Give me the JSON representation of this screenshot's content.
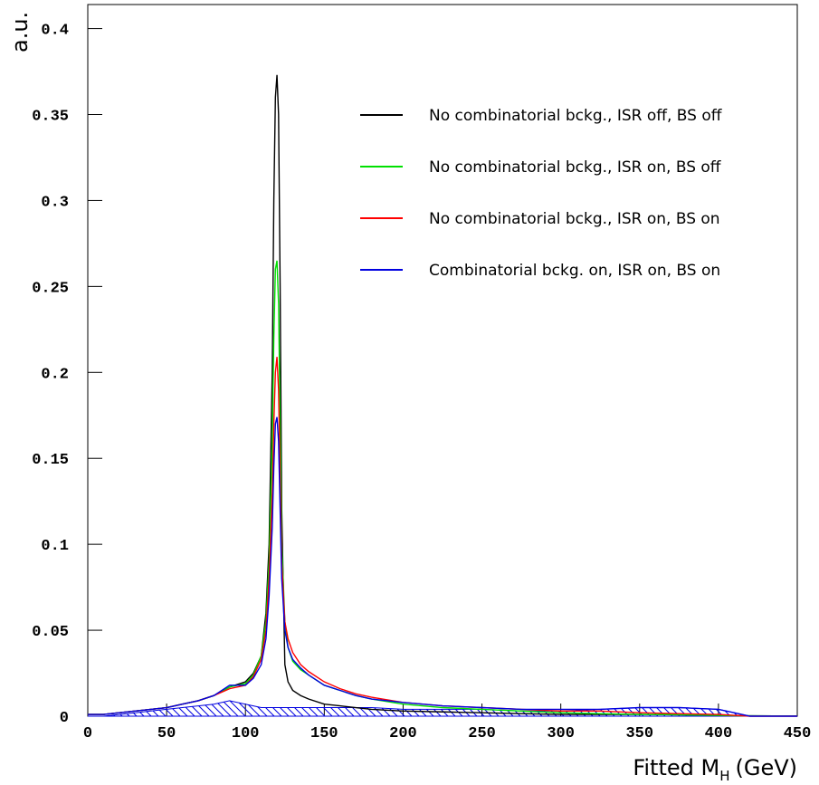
{
  "chart_data": {
    "type": "line",
    "y_label": "a.u.",
    "x_label": "Fitted M",
    "x_label_sub": "H",
    "x_label_unit": "(GeV)",
    "xlim": [
      0,
      450
    ],
    "ylim": [
      0,
      0.414
    ],
    "xticks": [
      0,
      50,
      100,
      150,
      200,
      250,
      300,
      350,
      400,
      450
    ],
    "yticks": [
      0,
      0.05,
      0.1,
      0.15,
      0.2,
      0.25,
      0.3,
      0.35,
      0.4
    ],
    "legend": "top-right",
    "x": [
      0,
      10,
      20,
      30,
      40,
      50,
      60,
      70,
      80,
      90,
      100,
      105,
      110,
      113,
      115,
      117,
      118,
      119,
      120,
      121,
      122,
      123,
      125,
      127,
      130,
      135,
      140,
      150,
      160,
      170,
      180,
      200,
      225,
      250,
      275,
      300,
      325,
      350,
      375,
      400,
      410,
      420,
      450
    ],
    "series": [
      {
        "name": "No combinatorial bckg., ISR off, BS off",
        "color": "#000000",
        "values": [
          0.001,
          0.001,
          0.002,
          0.003,
          0.004,
          0.005,
          0.007,
          0.009,
          0.012,
          0.017,
          0.02,
          0.025,
          0.035,
          0.06,
          0.1,
          0.2,
          0.3,
          0.36,
          0.373,
          0.35,
          0.25,
          0.12,
          0.03,
          0.02,
          0.015,
          0.012,
          0.01,
          0.007,
          0.006,
          0.005,
          0.004,
          0.003,
          0.0025,
          0.002,
          0.0015,
          0.001,
          0.001,
          0.001,
          0.0008,
          0.0005,
          0.0003,
          0.0002,
          0.0001
        ]
      },
      {
        "name": "No combinatorial bckg., ISR on, BS off",
        "color": "#00e000",
        "values": [
          0.001,
          0.001,
          0.002,
          0.003,
          0.004,
          0.005,
          0.007,
          0.009,
          0.012,
          0.017,
          0.019,
          0.024,
          0.035,
          0.055,
          0.09,
          0.16,
          0.22,
          0.26,
          0.265,
          0.24,
          0.17,
          0.1,
          0.055,
          0.04,
          0.032,
          0.027,
          0.024,
          0.018,
          0.015,
          0.012,
          0.01,
          0.007,
          0.005,
          0.004,
          0.003,
          0.002,
          0.0015,
          0.001,
          0.0008,
          0.0005,
          0.0003,
          0.0002,
          0.0001
        ]
      },
      {
        "name": "No combinatorial bckg., ISR on, BS on",
        "color": "#ff0000",
        "values": [
          0.001,
          0.001,
          0.002,
          0.003,
          0.004,
          0.005,
          0.007,
          0.009,
          0.012,
          0.016,
          0.018,
          0.023,
          0.033,
          0.05,
          0.08,
          0.13,
          0.17,
          0.2,
          0.209,
          0.19,
          0.14,
          0.09,
          0.055,
          0.045,
          0.037,
          0.03,
          0.026,
          0.02,
          0.016,
          0.013,
          0.011,
          0.008,
          0.006,
          0.005,
          0.004,
          0.003,
          0.003,
          0.002,
          0.0015,
          0.001,
          0.0005,
          0,
          0
        ]
      },
      {
        "name": "Combinatorial bckg. on, ISR on, BS on",
        "color": "#0000e0",
        "values": [
          0.001,
          0.001,
          0.002,
          0.003,
          0.004,
          0.005,
          0.007,
          0.009,
          0.012,
          0.018,
          0.018,
          0.022,
          0.03,
          0.045,
          0.07,
          0.11,
          0.145,
          0.17,
          0.174,
          0.16,
          0.12,
          0.08,
          0.05,
          0.04,
          0.033,
          0.028,
          0.024,
          0.018,
          0.015,
          0.012,
          0.01,
          0.008,
          0.006,
          0.005,
          0.004,
          0.004,
          0.004,
          0.005,
          0.005,
          0.004,
          0.002,
          0,
          0
        ]
      }
    ],
    "hatched": {
      "color": "#0000e0",
      "values": [
        0,
        0,
        0.001,
        0.002,
        0.003,
        0.004,
        0.005,
        0.006,
        0.007,
        0.009,
        0.007,
        0.006,
        0.005,
        0.005,
        0.005,
        0.005,
        0.005,
        0.005,
        0.005,
        0.005,
        0.005,
        0.005,
        0.005,
        0.005,
        0.005,
        0.005,
        0.005,
        0.005,
        0.005,
        0.005,
        0.005,
        0.004,
        0.004,
        0.004,
        0.003,
        0.003,
        0.004,
        0.005,
        0.005,
        0.004,
        0.002,
        0,
        0
      ]
    }
  }
}
